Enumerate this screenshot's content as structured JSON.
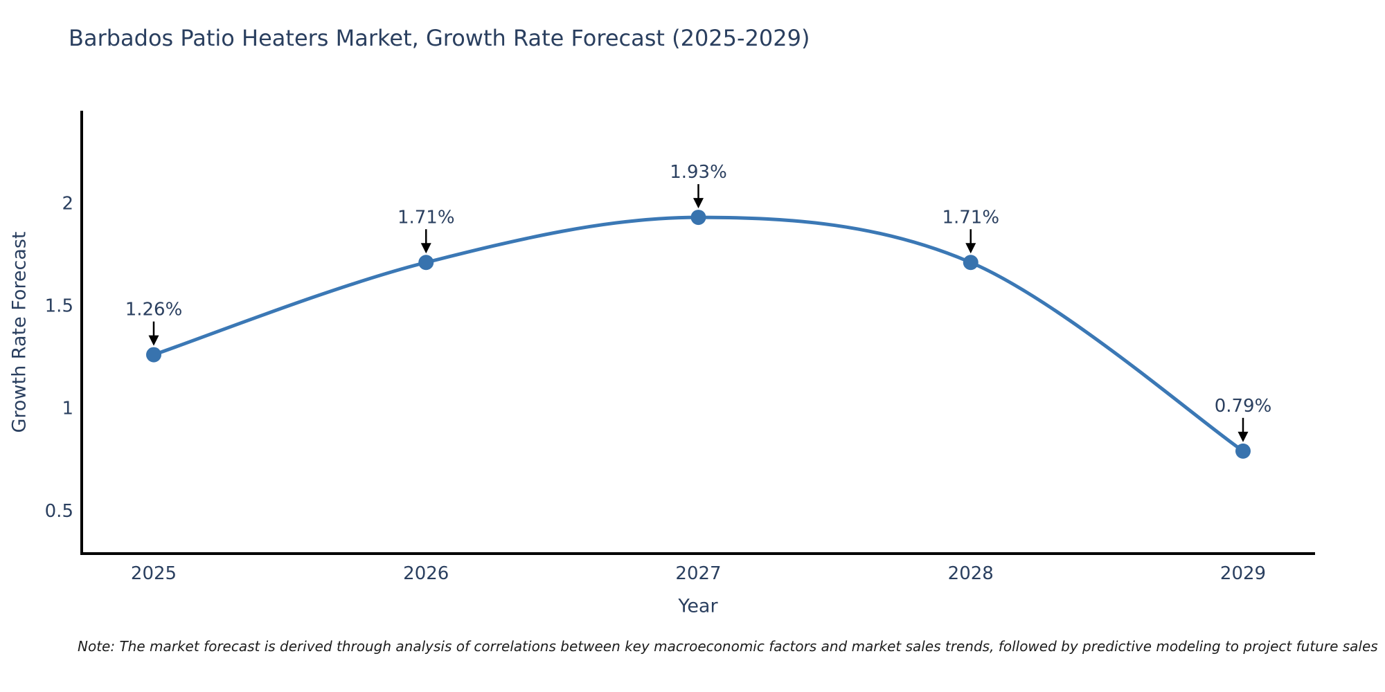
{
  "page": {
    "background": "#ffffff"
  },
  "chart_data": {
    "type": "line",
    "title": "Barbados Patio Heaters Market, Growth Rate Forecast (2025-2029)",
    "xlabel": "Year",
    "ylabel": "Growth Rate Forecast",
    "categories": [
      "2025",
      "2026",
      "2027",
      "2028",
      "2029"
    ],
    "series": [
      {
        "name": "Growth Rate Forecast",
        "values": [
          1.26,
          1.71,
          1.93,
          1.71,
          0.79
        ]
      }
    ],
    "point_labels": [
      "1.26%",
      "1.71%",
      "1.93%",
      "1.71%",
      "0.79%"
    ],
    "y_ticks": [
      "0.5",
      "1",
      "1.5",
      "2"
    ],
    "y_tick_values": [
      0.5,
      1,
      1.5,
      2
    ],
    "ylim": [
      0.29,
      2.45
    ],
    "line_shape": "spline",
    "grid": false,
    "legend_position": "none",
    "note": "Note: The market forecast is derived through analysis of correlations between key macroeconomic factors and market sales trends, followed by predictive modeling to project future sales",
    "colors": {
      "line": "#3b78b5",
      "marker": "#3873ae",
      "axis": "#000000",
      "text": "#2a3f5f",
      "annotation": "#000000",
      "title": "#2a3f5f",
      "note_text": "#1c1c1c"
    }
  }
}
